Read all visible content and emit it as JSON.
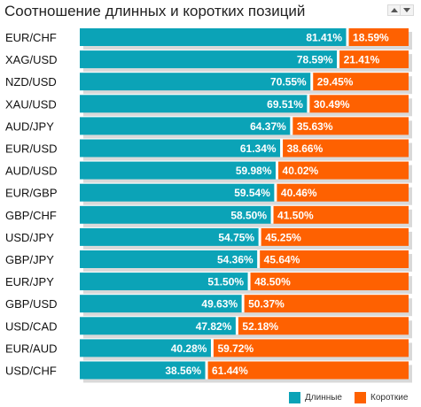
{
  "title": "Соотношение длинных и коротких позиций",
  "controls": {
    "sort_up_icon": "triangle-up-icon",
    "sort_down_icon": "triangle-down-icon"
  },
  "colors": {
    "long": "#0ba3b7",
    "short": "#fe6101",
    "shadow": "#d9d9d9",
    "divider": "#ffffff"
  },
  "legend": {
    "long_label": "Длинные",
    "short_label": "Короткие"
  },
  "chart_data": {
    "type": "bar",
    "stacked": true,
    "orientation": "horizontal",
    "unit": "%",
    "categories": [
      "EUR/CHF",
      "XAG/USD",
      "NZD/USD",
      "XAU/USD",
      "AUD/JPY",
      "EUR/USD",
      "AUD/USD",
      "EUR/GBP",
      "GBP/CHF",
      "USD/JPY",
      "GBP/JPY",
      "EUR/JPY",
      "GBP/USD",
      "USD/CAD",
      "EUR/AUD",
      "USD/CHF"
    ],
    "series": [
      {
        "name": "Длинные",
        "values": [
          81.41,
          78.59,
          70.55,
          69.51,
          64.37,
          61.34,
          59.98,
          59.54,
          58.5,
          54.75,
          54.36,
          51.5,
          49.63,
          47.82,
          40.28,
          38.56
        ],
        "labels": [
          "81.41%",
          "78.59%",
          "70.55%",
          "69.51%",
          "64.37%",
          "61.34%",
          "59.98%",
          "59.54%",
          "58.50%",
          "54.75%",
          "54.36%",
          "51.50%",
          "49.63%",
          "47.82%",
          "40.28%",
          "38.56%"
        ]
      },
      {
        "name": "Короткие",
        "values": [
          18.59,
          21.41,
          29.45,
          30.49,
          35.63,
          38.66,
          40.02,
          40.46,
          41.5,
          45.25,
          45.64,
          48.5,
          50.37,
          52.18,
          59.72,
          61.44
        ],
        "labels": [
          "18.59%",
          "21.41%",
          "29.45%",
          "30.49%",
          "35.63%",
          "38.66%",
          "40.02%",
          "40.46%",
          "41.50%",
          "45.25%",
          "45.64%",
          "48.50%",
          "50.37%",
          "52.18%",
          "59.72%",
          "61.44%"
        ]
      }
    ],
    "xlim": [
      0,
      100
    ],
    "grid": false,
    "legend_position": "bottom-right"
  }
}
